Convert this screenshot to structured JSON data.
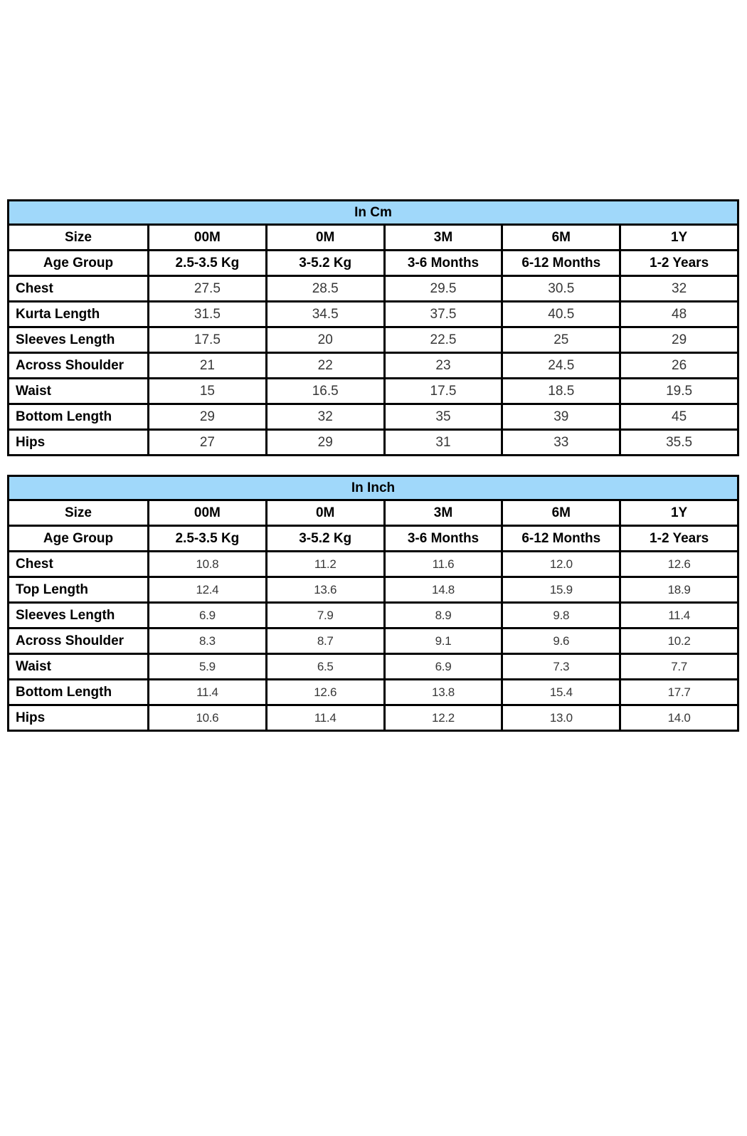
{
  "page": {
    "background": "#ffffff"
  },
  "colors": {
    "title_band_bg": "#A0D8FA",
    "border": "#000000",
    "label_text": "#000000",
    "value_text": "#373737"
  },
  "tables": [
    {
      "id": "cm",
      "title": "In Cm",
      "size_header": {
        "label": "Size",
        "values": [
          "00M",
          "0M",
          "3M",
          "6M",
          "1Y"
        ]
      },
      "age_header": {
        "label": "Age Group",
        "values": [
          "2.5-3.5 Kg",
          "3-5.2 Kg",
          "3-6 Months",
          "6-12 Months",
          "1-2 Years"
        ]
      },
      "rows": [
        {
          "label": "Chest",
          "values": [
            "27.5",
            "28.5",
            "29.5",
            "30.5",
            "32"
          ]
        },
        {
          "label": "Kurta Length",
          "values": [
            "31.5",
            "34.5",
            "37.5",
            "40.5",
            "48"
          ]
        },
        {
          "label": "Sleeves Length",
          "values": [
            "17.5",
            "20",
            "22.5",
            "25",
            "29"
          ]
        },
        {
          "label": "Across Shoulder",
          "values": [
            "21",
            "22",
            "23",
            "24.5",
            "26"
          ]
        },
        {
          "label": "Waist",
          "values": [
            "15",
            "16.5",
            "17.5",
            "18.5",
            "19.5"
          ]
        },
        {
          "label": "Bottom Length",
          "values": [
            "29",
            "32",
            "35",
            "39",
            "45"
          ]
        },
        {
          "label": "Hips",
          "values": [
            "27",
            "29",
            "31",
            "33",
            "35.5"
          ]
        }
      ]
    },
    {
      "id": "inch",
      "title": "In Inch",
      "size_header": {
        "label": "Size",
        "values": [
          "00M",
          "0M",
          "3M",
          "6M",
          "1Y"
        ]
      },
      "age_header": {
        "label": "Age Group",
        "values": [
          "2.5-3.5 Kg",
          "3-5.2 Kg",
          "3-6 Months",
          "6-12 Months",
          "1-2 Years"
        ]
      },
      "rows": [
        {
          "label": "Chest",
          "values": [
            "10.8",
            "11.2",
            "11.6",
            "12.0",
            "12.6"
          ]
        },
        {
          "label": "Top Length",
          "values": [
            "12.4",
            "13.6",
            "14.8",
            "15.9",
            "18.9"
          ]
        },
        {
          "label": "Sleeves Length",
          "values": [
            "6.9",
            "7.9",
            "8.9",
            "9.8",
            "11.4"
          ]
        },
        {
          "label": "Across Shoulder",
          "values": [
            "8.3",
            "8.7",
            "9.1",
            "9.6",
            "10.2"
          ]
        },
        {
          "label": "Waist",
          "values": [
            "5.9",
            "6.5",
            "6.9",
            "7.3",
            "7.7"
          ]
        },
        {
          "label": "Bottom Length",
          "values": [
            "11.4",
            "12.6",
            "13.8",
            "15.4",
            "17.7"
          ]
        },
        {
          "label": "Hips",
          "values": [
            "10.6",
            "11.4",
            "12.2",
            "13.0",
            "14.0"
          ]
        }
      ]
    }
  ]
}
